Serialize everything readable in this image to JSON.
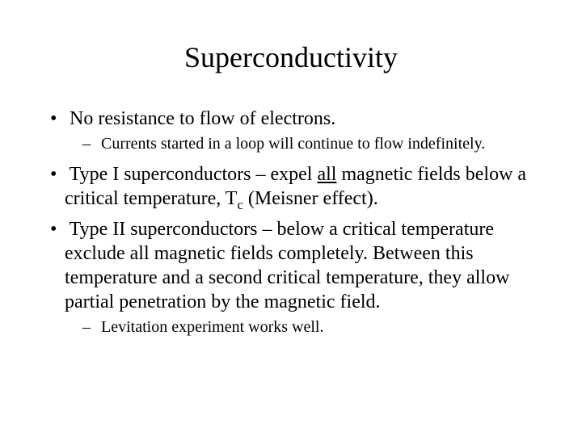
{
  "title": "Superconductivity",
  "bullets": {
    "b1": "No resistance to flow of electrons.",
    "b1_sub1": "Currents started in a loop will continue to flow indefinitely.",
    "b2_pre": "Type I superconductors – expel ",
    "b2_all": "all",
    "b2_mid": " magnetic fields below a critical temperature, T",
    "b2_sub": "c",
    "b2_post": " (Meisner effect).",
    "b3": "Type II superconductors – below a critical temperature exclude all magnetic fields completely.  Between this temperature and a second critical temperature, they allow partial penetration by the magnetic field.",
    "b3_sub1": "Levitation experiment works well."
  },
  "style": {
    "background": "#ffffff",
    "text_color": "#000000",
    "title_fontsize": 36,
    "body_fontsize": 24,
    "sub_fontsize": 20,
    "font_family": "Times New Roman"
  }
}
